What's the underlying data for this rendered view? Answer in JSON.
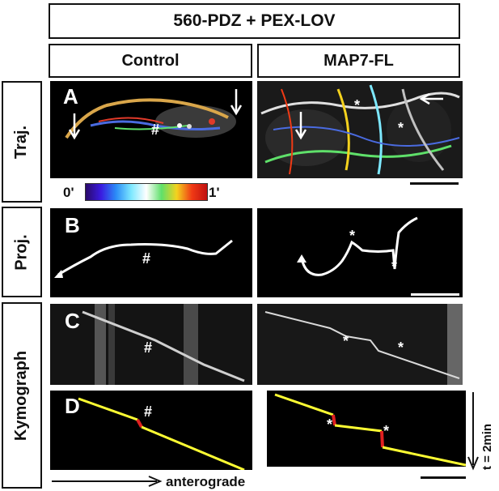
{
  "header": {
    "title": "560-PDZ + PEX-LOV"
  },
  "conditions": {
    "control": "Control",
    "map7": "MAP7-FL"
  },
  "row_labels": {
    "traj": "Traj.",
    "proj": "Proj.",
    "kymo": "Kymograph"
  },
  "panel_letters": {
    "a": "A",
    "b": "B",
    "c": "C",
    "d": "D"
  },
  "markers": {
    "hash": "#",
    "star": "*"
  },
  "colorbar": {
    "start": "0'",
    "end": "1'"
  },
  "axes": {
    "time": "t = 2min",
    "direction": "anterograde"
  },
  "colors": {
    "track_line": "#ffff33",
    "pause_segment": "#e02020",
    "panel_bg": "#000000"
  }
}
